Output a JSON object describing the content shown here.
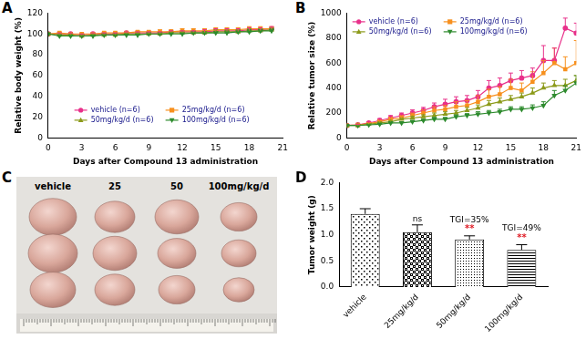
{
  "chart_data": [
    {
      "label": "A",
      "type": "line",
      "x_label": "Days after Compound 13 administration",
      "y_label": "Relative body weight (%)",
      "x": [
        0,
        1,
        2,
        3,
        4,
        5,
        6,
        7,
        8,
        9,
        10,
        11,
        12,
        13,
        14,
        15,
        16,
        17,
        18,
        19,
        20
      ],
      "xlim": [
        0,
        21
      ],
      "xticks": [
        0,
        3,
        6,
        9,
        12,
        15,
        18,
        21
      ],
      "ylim": [
        0,
        120
      ],
      "yticks": [
        0,
        20,
        40,
        60,
        80,
        100,
        120
      ],
      "grid": false,
      "legend": "lower center",
      "series": [
        {
          "name": "vehicle (n=6)",
          "color": "#e8308a",
          "marker": "circle",
          "values": [
            100,
            100,
            100,
            99,
            100,
            100,
            100,
            101,
            101,
            101,
            101,
            102,
            102,
            102,
            102,
            103,
            103,
            103,
            104,
            104,
            105
          ],
          "errors": [
            0,
            1,
            1,
            1,
            1,
            1,
            1,
            1,
            1,
            1,
            1,
            1,
            1,
            1,
            2,
            2,
            2,
            2,
            2,
            2,
            2
          ]
        },
        {
          "name": "25mg/kg/d (n=6)",
          "color": "#f7901e",
          "marker": "square",
          "values": [
            100,
            101,
            100,
            100,
            100,
            101,
            101,
            101,
            102,
            102,
            102,
            102,
            103,
            103,
            103,
            104,
            104,
            104,
            105,
            105,
            105
          ],
          "errors": [
            0,
            1,
            1,
            1,
            1,
            1,
            1,
            1,
            1,
            1,
            2,
            2,
            2,
            2,
            2,
            2,
            2,
            2,
            2,
            2,
            2
          ]
        },
        {
          "name": "50mg/kg/d (n=6)",
          "color": "#8c9a1a",
          "marker": "triangle",
          "values": [
            100,
            99,
            99,
            98,
            99,
            99,
            99,
            100,
            100,
            100,
            100,
            101,
            101,
            101,
            101,
            102,
            102,
            102,
            103,
            103,
            104
          ],
          "errors": [
            0,
            1,
            1,
            1,
            1,
            1,
            1,
            1,
            1,
            1,
            1,
            1,
            1,
            1,
            1,
            2,
            2,
            2,
            2,
            2,
            2
          ]
        },
        {
          "name": "100mg/kg/d (n=6)",
          "color": "#2e8b2e",
          "marker": "triangle_down",
          "values": [
            100,
            98,
            98,
            98,
            98,
            99,
            99,
            99,
            99,
            100,
            100,
            100,
            100,
            101,
            101,
            101,
            101,
            102,
            102,
            103,
            103
          ],
          "errors": [
            0,
            1,
            1,
            1,
            1,
            1,
            1,
            1,
            1,
            1,
            1,
            1,
            1,
            1,
            1,
            1,
            2,
            2,
            2,
            2,
            2
          ]
        }
      ]
    },
    {
      "label": "B",
      "type": "line",
      "x_label": "Days after Compound 13 administration",
      "y_label": "Relative tumor size (%)",
      "x": [
        0,
        1,
        2,
        3,
        4,
        5,
        6,
        7,
        8,
        9,
        10,
        11,
        12,
        13,
        14,
        15,
        16,
        17,
        18,
        19,
        20,
        21
      ],
      "xlim": [
        0,
        21
      ],
      "xticks": [
        0,
        3,
        6,
        9,
        12,
        15,
        18,
        21
      ],
      "ylim": [
        0,
        1000
      ],
      "yticks": [
        0,
        200,
        400,
        600,
        800,
        1000
      ],
      "grid": false,
      "legend": "upper left",
      "series": [
        {
          "name": "vehicle (n=6)",
          "color": "#e8308a",
          "marker": "circle",
          "values": [
            100,
            105,
            120,
            140,
            160,
            180,
            200,
            220,
            250,
            270,
            290,
            300,
            330,
            400,
            420,
            460,
            480,
            500,
            620,
            620,
            880,
            840
          ],
          "errors": [
            0,
            5,
            10,
            15,
            20,
            20,
            25,
            25,
            30,
            40,
            40,
            40,
            50,
            60,
            60,
            60,
            60,
            60,
            120,
            100,
            80,
            80
          ]
        },
        {
          "name": "25mg/kg/d (n=6)",
          "color": "#f7901e",
          "marker": "square",
          "values": [
            100,
            105,
            115,
            130,
            150,
            160,
            180,
            200,
            220,
            230,
            250,
            260,
            290,
            330,
            350,
            400,
            380,
            450,
            520,
            600,
            550,
            600
          ],
          "errors": [
            0,
            5,
            10,
            10,
            15,
            20,
            20,
            25,
            30,
            30,
            40,
            40,
            50,
            60,
            60,
            70,
            60,
            80,
            100,
            120,
            100,
            180
          ]
        },
        {
          "name": "50mg/kg/d (n=6)",
          "color": "#8c9a1a",
          "marker": "triangle",
          "values": [
            100,
            100,
            110,
            120,
            130,
            150,
            160,
            170,
            180,
            190,
            200,
            220,
            240,
            270,
            290,
            310,
            330,
            360,
            400,
            420,
            420,
            460
          ],
          "errors": [
            0,
            5,
            5,
            10,
            10,
            10,
            15,
            15,
            20,
            20,
            20,
            25,
            25,
            30,
            30,
            30,
            30,
            40,
            40,
            40,
            50,
            40
          ]
        },
        {
          "name": "100mg/kg/d (n=6)",
          "color": "#2e8b2e",
          "marker": "triangle_down",
          "values": [
            100,
            100,
            105,
            110,
            120,
            120,
            130,
            140,
            150,
            150,
            170,
            180,
            190,
            200,
            210,
            230,
            230,
            240,
            260,
            340,
            380,
            440
          ],
          "errors": [
            0,
            5,
            5,
            5,
            10,
            10,
            10,
            10,
            15,
            15,
            15,
            15,
            20,
            20,
            20,
            20,
            20,
            25,
            30,
            40,
            40,
            60
          ]
        }
      ]
    },
    {
      "label": "D",
      "type": "bar",
      "y_label": "Tumor weight (g)",
      "categories": [
        "vehicle",
        "25mg/kg/d",
        "50mg/kg/d",
        "100mg/kg/d"
      ],
      "values": [
        1.4,
        1.05,
        0.91,
        0.71
      ],
      "errors": [
        0.1,
        0.14,
        0.07,
        0.1
      ],
      "color": "#000000",
      "ylim": [
        0,
        2
      ],
      "yticks": [
        {
          "value": 0,
          "label": "0.0"
        },
        {
          "value": 0.5,
          "label": "0.5"
        },
        {
          "value": 1,
          "label": "1.0"
        },
        {
          "value": 1.5,
          "label": "1.5"
        },
        {
          "value": 2,
          "label": "2.0"
        }
      ],
      "grid": false,
      "annotations": [
        {
          "category": "25mg/kg/d",
          "text": "ns",
          "color": "#000000"
        },
        {
          "category": "50mg/kg/d",
          "text": "**",
          "color": "#e0202a"
        },
        {
          "category": "50mg/kg/d",
          "text": "TGI=35%",
          "color": "#000000"
        },
        {
          "category": "100mg/kg/d",
          "text": "**",
          "color": "#e0202a"
        },
        {
          "category": "100mg/kg/d",
          "text": "TGI=49%",
          "color": "#000000"
        }
      ]
    }
  ],
  "photo": {
    "label": "C",
    "column_labels": [
      "vehicle",
      "25",
      "50",
      "100mg/kg/d"
    ]
  }
}
